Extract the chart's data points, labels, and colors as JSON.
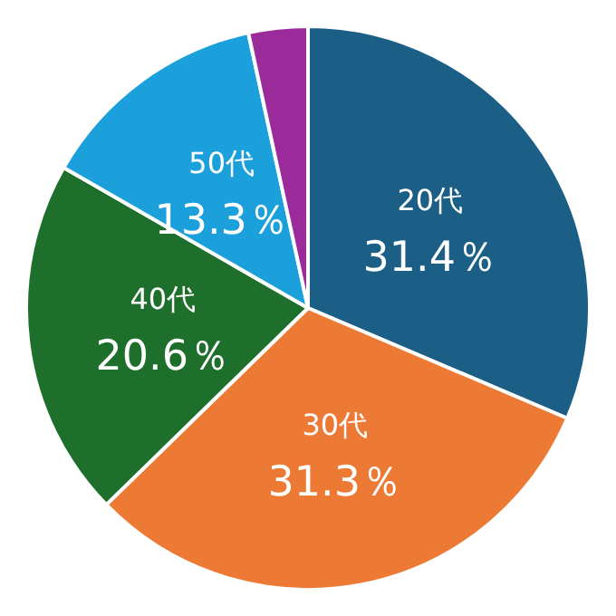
{
  "chart_data": {
    "type": "pie",
    "categories": [
      "20代",
      "30代",
      "40代",
      "50代",
      null
    ],
    "values": [
      31.4,
      31.3,
      20.6,
      13.3,
      3.4
    ],
    "colors": [
      "#1b5f86",
      "#ec7a35",
      "#1e6f2b",
      "#1ba0dc",
      "#9b2b9b"
    ],
    "value_labels": [
      "31.4％",
      "31.3％",
      "20.6％",
      "13.3％",
      null
    ],
    "legend": false
  }
}
